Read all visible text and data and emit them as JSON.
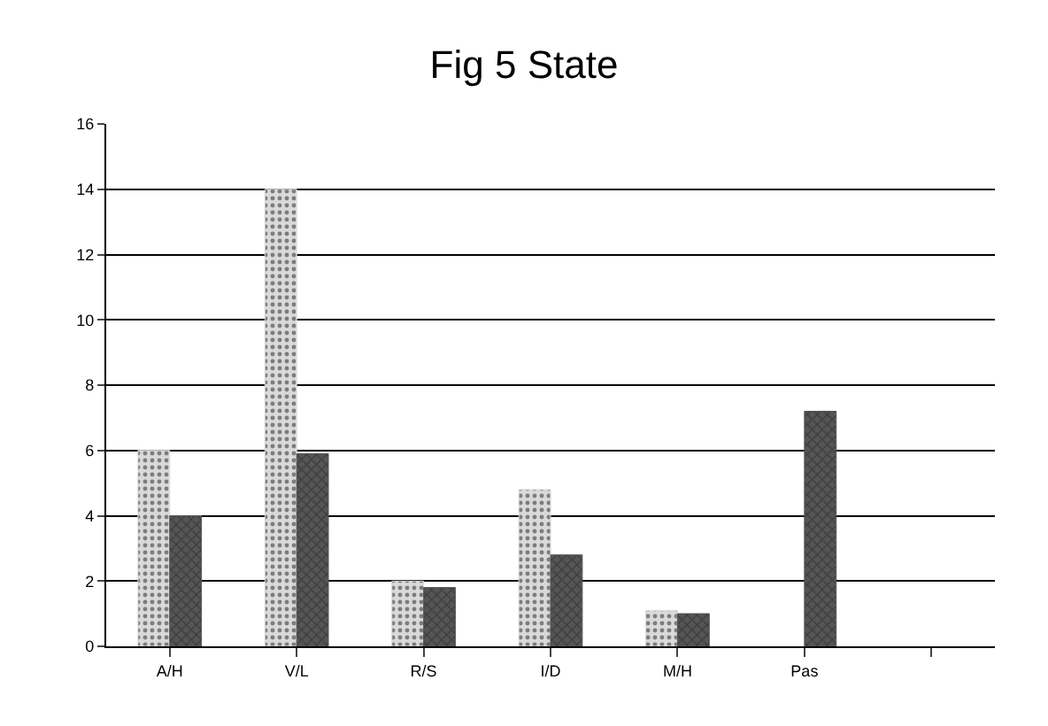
{
  "chart_data": {
    "type": "bar",
    "title": "Fig 5 State",
    "categories": [
      "A/H",
      "V/L",
      "R/S",
      "I/D",
      "M/H",
      "Pas",
      null
    ],
    "series": [
      {
        "color": "#d9d9d9",
        "values": [
          6,
          14,
          2.0,
          4.8,
          1.1,
          null,
          null
        ]
      },
      {
        "color": "#555555",
        "values": [
          4,
          5.9,
          1.8,
          2.8,
          1.0,
          7.2,
          null
        ]
      }
    ],
    "ylim": [
      0,
      16
    ],
    "yticks": [
      0,
      2,
      4,
      6,
      8,
      10,
      12,
      14,
      16
    ],
    "grid": "y"
  }
}
